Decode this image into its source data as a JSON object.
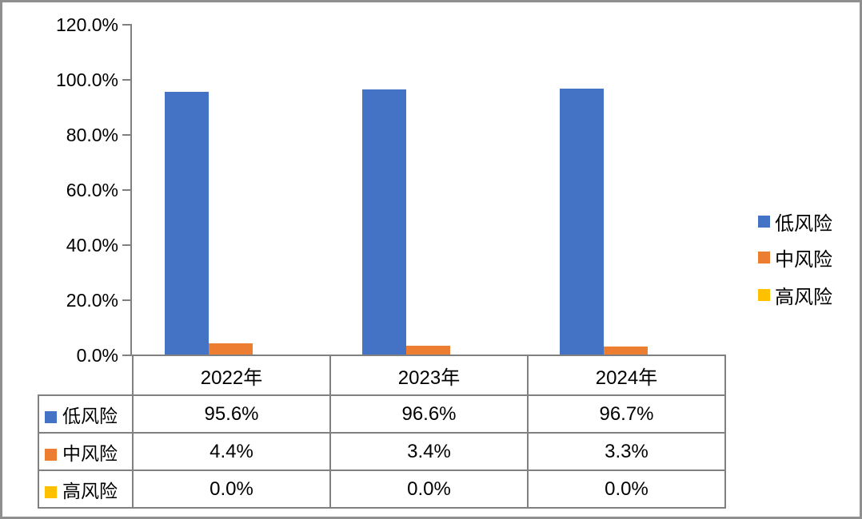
{
  "chart_data": {
    "type": "bar",
    "title": "",
    "categories": [
      "2022年",
      "2023年",
      "2024年"
    ],
    "series": [
      {
        "name": "低风险",
        "color": "#4472C4",
        "values": [
          95.6,
          96.6,
          96.7
        ],
        "labels": [
          "95.6%",
          "96.6%",
          "96.7%"
        ]
      },
      {
        "name": "中风险",
        "color": "#ED7D31",
        "values": [
          4.4,
          3.4,
          3.3
        ],
        "labels": [
          "4.4%",
          "3.4%",
          "3.3%"
        ]
      },
      {
        "name": "高风险",
        "color": "#FFC000",
        "values": [
          0.0,
          0.0,
          0.0
        ],
        "labels": [
          "0.0%",
          "0.0%",
          "0.0%"
        ]
      }
    ],
    "y_axis": {
      "min": 0,
      "max": 120,
      "step": 20,
      "tick_labels": [
        "0.0%",
        "20.0%",
        "40.0%",
        "60.0%",
        "80.0%",
        "100.0%",
        "120.0%"
      ]
    },
    "legend": {
      "position": "right",
      "entries": [
        "低风险",
        "中风险",
        "高风险"
      ]
    },
    "grid": false,
    "data_table_shown": true
  },
  "colors": {
    "series_low_risk": "#4472C4",
    "series_medium_risk": "#ED7D31",
    "series_high_risk": "#FFC000",
    "axis": "#808080",
    "table_border": "#808080",
    "outer_border": "#8F8F8F",
    "text": "#000000",
    "background": "#FFFFFF"
  }
}
